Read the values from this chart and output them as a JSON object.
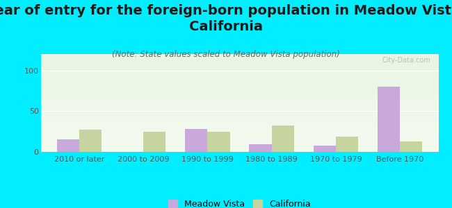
{
  "title": "Year of entry for the foreign-born population in Meadow Vista,\nCalifornia",
  "subtitle": "(Note: State values scaled to Meadow Vista population)",
  "categories": [
    "2010 or later",
    "2000 to 2009",
    "1990 to 1999",
    "1980 to 1989",
    "1970 to 1979",
    "Before 1970"
  ],
  "meadow_vista": [
    15,
    0,
    28,
    9,
    8,
    80
  ],
  "california": [
    27,
    25,
    25,
    32,
    19,
    13
  ],
  "meadow_vista_color": "#c9a8dc",
  "california_color": "#c8d4a0",
  "bg_color": "#00eeff",
  "plot_bg_top": "#e8f5e2",
  "plot_bg_bottom": "#f5faf0",
  "ylim": [
    0,
    120
  ],
  "yticks": [
    0,
    50,
    100
  ],
  "bar_width": 0.35,
  "title_fontsize": 14,
  "subtitle_fontsize": 8.5,
  "legend_fontsize": 9,
  "tick_fontsize": 8
}
